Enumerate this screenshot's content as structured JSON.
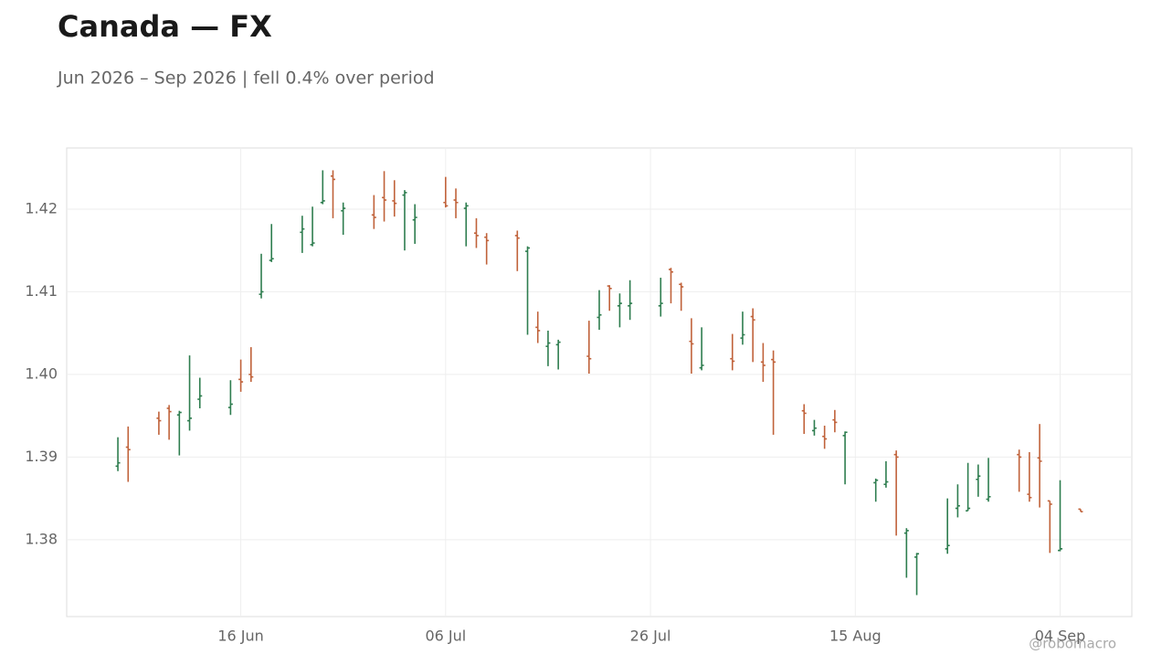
{
  "chart_data": {
    "type": "ohlc",
    "title": "Canada — FX",
    "subtitle": "Jun 2026 – Sep 2026 | fell 0.4% over period",
    "watermark": "@robomacro",
    "up_color": "#2e7d4f",
    "down_color": "#c0623a",
    "grid": true,
    "xlim": [
      "30 May",
      "11 Sep"
    ],
    "xticks": [
      "16 Jun",
      "06 Jul",
      "26 Jul",
      "15 Aug",
      "04 Sep"
    ],
    "ylim": [
      1.3707,
      1.4274
    ],
    "yticks": [
      1.38,
      1.39,
      {
        "value": 1.4,
        "label": "1.40"
      },
      1.41,
      1.42
    ],
    "x": [
      "04 Jun",
      "05 Jun",
      "08 Jun",
      "09 Jun",
      "10 Jun",
      "11 Jun",
      "12 Jun",
      "15 Jun",
      "16 Jun",
      "17 Jun",
      "18 Jun",
      "19 Jun",
      "22 Jun",
      "23 Jun",
      "24 Jun",
      "25 Jun",
      "26 Jun",
      "29 Jun",
      "30 Jun",
      "01 Jul",
      "02 Jul",
      "03 Jul",
      "06 Jul",
      "07 Jul",
      "08 Jul",
      "09 Jul",
      "10 Jul",
      "13 Jul",
      "14 Jul",
      "15 Jul",
      "16 Jul",
      "17 Jul",
      "20 Jul",
      "21 Jul",
      "22 Jul",
      "23 Jul",
      "24 Jul",
      "27 Jul",
      "28 Jul",
      "29 Jul",
      "30 Jul",
      "31 Jul",
      "03 Aug",
      "04 Aug",
      "05 Aug",
      "06 Aug",
      "07 Aug",
      "10 Aug",
      "11 Aug",
      "12 Aug",
      "13 Aug",
      "14 Aug",
      "17 Aug",
      "18 Aug",
      "19 Aug",
      "20 Aug",
      "21 Aug",
      "24 Aug",
      "25 Aug",
      "26 Aug",
      "27 Aug",
      "28 Aug",
      "31 Aug",
      "01 Sep",
      "02 Sep",
      "03 Sep",
      "04 Sep",
      "06 Sep"
    ],
    "open": [
      1.3889,
      1.3912,
      1.3947,
      1.3959,
      1.3951,
      1.3944,
      1.397,
      1.396,
      1.3994,
      1.4,
      1.4097,
      1.4138,
      1.4172,
      1.4157,
      1.4208,
      1.424,
      1.4198,
      1.4193,
      1.4214,
      1.421,
      1.4217,
      1.4187,
      1.4208,
      1.4211,
      1.4201,
      1.4171,
      1.4166,
      1.4168,
      1.4149,
      1.4057,
      1.4034,
      1.4036,
      1.4022,
      1.4069,
      1.4107,
      1.4083,
      1.4083,
      1.4083,
      1.4127,
      1.4109,
      1.404,
      1.4008,
      1.4019,
      1.4044,
      1.407,
      1.4015,
      1.4018,
      1.3956,
      1.3932,
      1.3925,
      1.3945,
      1.3926,
      1.3869,
      1.3867,
      1.3903,
      1.3808,
      1.3779,
      1.3789,
      1.3838,
      1.3835,
      1.3873,
      1.3849,
      1.3903,
      1.3855,
      1.3899,
      1.3847,
      1.3787,
      1.3837
    ],
    "high": [
      1.3924,
      1.3937,
      1.3955,
      1.3963,
      1.3956,
      1.4023,
      1.3996,
      1.3993,
      1.4018,
      1.4033,
      1.4146,
      1.4182,
      1.4192,
      1.4203,
      1.4247,
      1.4247,
      1.4208,
      1.4217,
      1.4246,
      1.4235,
      1.4223,
      1.4206,
      1.4239,
      1.4225,
      1.4208,
      1.4189,
      1.4171,
      1.4174,
      1.4155,
      1.4076,
      1.4053,
      1.4042,
      1.4065,
      1.4102,
      1.4108,
      1.4098,
      1.4114,
      1.4117,
      1.4129,
      1.4111,
      1.4068,
      1.4057,
      1.4049,
      1.4076,
      1.408,
      1.4038,
      1.4029,
      1.3964,
      1.3945,
      1.3938,
      1.3957,
      1.3931,
      1.3874,
      1.3895,
      1.3908,
      1.3814,
      1.3784,
      1.385,
      1.3867,
      1.3893,
      1.3891,
      1.3899,
      1.3909,
      1.3906,
      1.394,
      1.3847,
      1.3872,
      1.3837
    ],
    "low": [
      1.3883,
      1.387,
      1.3927,
      1.3921,
      1.3902,
      1.3932,
      1.3959,
      1.3951,
      1.3979,
      1.3991,
      1.4092,
      1.4136,
      1.4147,
      1.4155,
      1.4206,
      1.4189,
      1.4169,
      1.4176,
      1.4185,
      1.4191,
      1.415,
      1.4158,
      1.4202,
      1.4189,
      1.4155,
      1.4153,
      1.4133,
      1.4125,
      1.4048,
      1.4038,
      1.401,
      1.4006,
      1.4001,
      1.4054,
      1.4077,
      1.4057,
      1.4066,
      1.407,
      1.4086,
      1.4077,
      1.4001,
      1.4005,
      1.4005,
      1.4036,
      1.4015,
      1.3991,
      1.3927,
      1.3928,
      1.3926,
      1.391,
      1.393,
      1.3867,
      1.3846,
      1.3863,
      1.3805,
      1.3754,
      1.3733,
      1.3783,
      1.3827,
      1.3835,
      1.3852,
      1.3846,
      1.3858,
      1.3846,
      1.3839,
      1.3784,
      1.3786,
      1.3834
    ],
    "close": [
      1.3893,
      1.3909,
      1.3944,
      1.3955,
      1.3954,
      1.3947,
      1.3974,
      1.3964,
      1.3991,
      1.3997,
      1.41,
      1.414,
      1.4176,
      1.4159,
      1.421,
      1.4236,
      1.4201,
      1.419,
      1.4211,
      1.4207,
      1.422,
      1.419,
      1.4204,
      1.4208,
      1.4204,
      1.4168,
      1.4162,
      1.4165,
      1.4153,
      1.4053,
      1.4038,
      1.4039,
      1.4019,
      1.4072,
      1.4104,
      1.4086,
      1.4086,
      1.4086,
      1.4124,
      1.4106,
      1.4037,
      1.4011,
      1.4016,
      1.4048,
      1.4066,
      1.4011,
      1.4015,
      1.3953,
      1.3935,
      1.3922,
      1.3942,
      1.393,
      1.3872,
      1.387,
      1.39,
      1.3811,
      1.3783,
      1.3793,
      1.3841,
      1.3838,
      1.3877,
      1.3852,
      1.39,
      1.3851,
      1.3895,
      1.3843,
      1.3789,
      1.3834
    ]
  }
}
